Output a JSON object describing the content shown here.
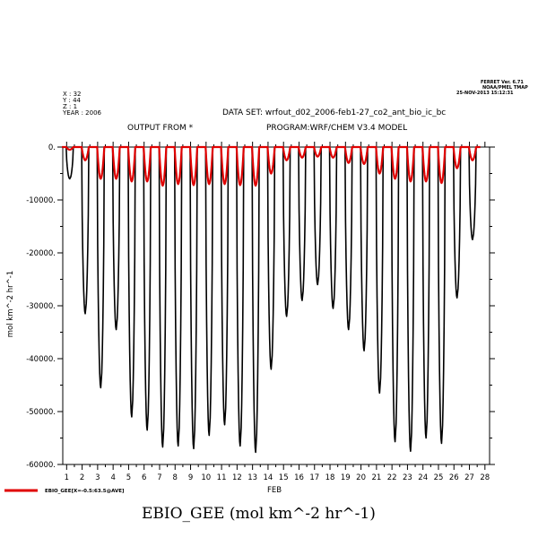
{
  "header": {
    "ferret_lines": [
      "FERRET Ver. 6.71",
      "NOAA/PMEL TMAP",
      "25-NOV-2013 15:12:31"
    ],
    "coord_lines": [
      "X : 32",
      "Y : 44",
      "Z : 1",
      "YEAR : 2006"
    ],
    "dataset": "DATA SET: wrfout_d02_2006-feb1-27_co2_ant_bio_ic_bc",
    "output_from": "OUTPUT FROM *",
    "program": "PROGRAM:WRF/CHEM V3.4 MODEL"
  },
  "legend": {
    "label": "EBIO_GEE[X=-0.5:63.5@AVE]",
    "color": "#e00000"
  },
  "bottom_title": "EBIO_GEE (mol km^-2 hr^-1)",
  "chart_data": {
    "type": "line",
    "xlabel": "FEB",
    "ylabel": "mol km^-2 hr^-1",
    "xlim": [
      0.75,
      28.3
    ],
    "ylim": [
      -60000,
      0
    ],
    "x_ticks": [
      "1",
      "2",
      "3",
      "4",
      "5",
      "6",
      "7",
      "8",
      "9",
      "10",
      "11",
      "12",
      "13",
      "14",
      "15",
      "16",
      "17",
      "18",
      "19",
      "20",
      "21",
      "22",
      "23",
      "24",
      "25",
      "26",
      "27",
      "28"
    ],
    "y_ticks": [
      {
        "value": 0,
        "label": "0."
      },
      {
        "value": -10000,
        "label": "-10000."
      },
      {
        "value": -20000,
        "label": "-20000."
      },
      {
        "value": -30000,
        "label": "-30000."
      },
      {
        "value": -40000,
        "label": "-40000."
      },
      {
        "value": -50000,
        "label": "-50000."
      },
      {
        "value": -60000,
        "label": "-60000."
      }
    ],
    "series": [
      {
        "color": "#000000",
        "note": "daily minima of the point series (day of Feb, value)",
        "daily_min": [
          [
            1.2,
            -6000
          ],
          [
            2.2,
            -31500
          ],
          [
            3.2,
            -45500
          ],
          [
            4.2,
            -34500
          ],
          [
            5.2,
            -51000
          ],
          [
            6.2,
            -53500
          ],
          [
            7.2,
            -56700
          ],
          [
            8.2,
            -56500
          ],
          [
            9.2,
            -57000
          ],
          [
            10.2,
            -54500
          ],
          [
            11.2,
            -52500
          ],
          [
            12.2,
            -56500
          ],
          [
            13.2,
            -57700
          ],
          [
            14.2,
            -42000
          ],
          [
            15.2,
            -32000
          ],
          [
            16.2,
            -29000
          ],
          [
            17.2,
            -26000
          ],
          [
            18.2,
            -30500
          ],
          [
            19.2,
            -34500
          ],
          [
            20.2,
            -38500
          ],
          [
            21.2,
            -46500
          ],
          [
            22.2,
            -55700
          ],
          [
            23.2,
            -57500
          ],
          [
            24.2,
            -55000
          ],
          [
            25.2,
            -56000
          ],
          [
            26.2,
            -28500
          ],
          [
            27.2,
            -17500
          ]
        ]
      },
      {
        "name": "EBIO_GEE[X=-0.5:63.5@AVE]",
        "color": "#e00000",
        "note": "domain-average daily minima (day of Feb, value)",
        "daily_min": [
          [
            1.2,
            -500
          ],
          [
            2.2,
            -2500
          ],
          [
            3.2,
            -6000
          ],
          [
            4.2,
            -6000
          ],
          [
            5.2,
            -6500
          ],
          [
            6.2,
            -6500
          ],
          [
            7.2,
            -7300
          ],
          [
            8.2,
            -7000
          ],
          [
            9.2,
            -7200
          ],
          [
            10.2,
            -7000
          ],
          [
            11.2,
            -7000
          ],
          [
            12.2,
            -7200
          ],
          [
            13.2,
            -7300
          ],
          [
            14.2,
            -5000
          ],
          [
            15.2,
            -2500
          ],
          [
            16.2,
            -2000
          ],
          [
            17.2,
            -1800
          ],
          [
            18.2,
            -2000
          ],
          [
            19.2,
            -3000
          ],
          [
            20.2,
            -3200
          ],
          [
            21.2,
            -5000
          ],
          [
            22.2,
            -6000
          ],
          [
            23.2,
            -6500
          ],
          [
            24.2,
            -6500
          ],
          [
            25.2,
            -6800
          ],
          [
            26.2,
            -4000
          ],
          [
            27.2,
            -2500
          ]
        ]
      }
    ]
  }
}
